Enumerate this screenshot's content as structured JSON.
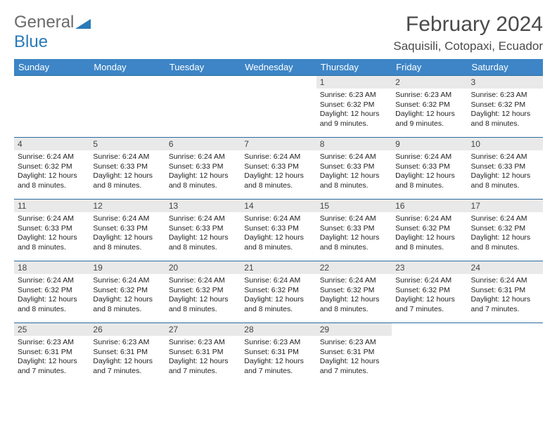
{
  "brand": {
    "line1": "General",
    "line2": "Blue",
    "logo_color": "#2a7ab8",
    "text_color": "#6a6a6a"
  },
  "title": "February 2024",
  "location": "Saquisili, Cotopaxi, Ecuador",
  "colors": {
    "header_bg": "#3d85c6",
    "header_text": "#ffffff",
    "daynum_bg": "#e9e9e9",
    "row_border": "#2a6aa0",
    "body_text": "#222222"
  },
  "weekdays": [
    "Sunday",
    "Monday",
    "Tuesday",
    "Wednesday",
    "Thursday",
    "Friday",
    "Saturday"
  ],
  "weeks": [
    [
      {
        "blank": true
      },
      {
        "blank": true
      },
      {
        "blank": true
      },
      {
        "blank": true
      },
      {
        "day": "1",
        "sunrise": "Sunrise: 6:23 AM",
        "sunset": "Sunset: 6:32 PM",
        "daylight": "Daylight: 12 hours and 9 minutes."
      },
      {
        "day": "2",
        "sunrise": "Sunrise: 6:23 AM",
        "sunset": "Sunset: 6:32 PM",
        "daylight": "Daylight: 12 hours and 9 minutes."
      },
      {
        "day": "3",
        "sunrise": "Sunrise: 6:23 AM",
        "sunset": "Sunset: 6:32 PM",
        "daylight": "Daylight: 12 hours and 8 minutes."
      }
    ],
    [
      {
        "day": "4",
        "sunrise": "Sunrise: 6:24 AM",
        "sunset": "Sunset: 6:32 PM",
        "daylight": "Daylight: 12 hours and 8 minutes."
      },
      {
        "day": "5",
        "sunrise": "Sunrise: 6:24 AM",
        "sunset": "Sunset: 6:33 PM",
        "daylight": "Daylight: 12 hours and 8 minutes."
      },
      {
        "day": "6",
        "sunrise": "Sunrise: 6:24 AM",
        "sunset": "Sunset: 6:33 PM",
        "daylight": "Daylight: 12 hours and 8 minutes."
      },
      {
        "day": "7",
        "sunrise": "Sunrise: 6:24 AM",
        "sunset": "Sunset: 6:33 PM",
        "daylight": "Daylight: 12 hours and 8 minutes."
      },
      {
        "day": "8",
        "sunrise": "Sunrise: 6:24 AM",
        "sunset": "Sunset: 6:33 PM",
        "daylight": "Daylight: 12 hours and 8 minutes."
      },
      {
        "day": "9",
        "sunrise": "Sunrise: 6:24 AM",
        "sunset": "Sunset: 6:33 PM",
        "daylight": "Daylight: 12 hours and 8 minutes."
      },
      {
        "day": "10",
        "sunrise": "Sunrise: 6:24 AM",
        "sunset": "Sunset: 6:33 PM",
        "daylight": "Daylight: 12 hours and 8 minutes."
      }
    ],
    [
      {
        "day": "11",
        "sunrise": "Sunrise: 6:24 AM",
        "sunset": "Sunset: 6:33 PM",
        "daylight": "Daylight: 12 hours and 8 minutes."
      },
      {
        "day": "12",
        "sunrise": "Sunrise: 6:24 AM",
        "sunset": "Sunset: 6:33 PM",
        "daylight": "Daylight: 12 hours and 8 minutes."
      },
      {
        "day": "13",
        "sunrise": "Sunrise: 6:24 AM",
        "sunset": "Sunset: 6:33 PM",
        "daylight": "Daylight: 12 hours and 8 minutes."
      },
      {
        "day": "14",
        "sunrise": "Sunrise: 6:24 AM",
        "sunset": "Sunset: 6:33 PM",
        "daylight": "Daylight: 12 hours and 8 minutes."
      },
      {
        "day": "15",
        "sunrise": "Sunrise: 6:24 AM",
        "sunset": "Sunset: 6:33 PM",
        "daylight": "Daylight: 12 hours and 8 minutes."
      },
      {
        "day": "16",
        "sunrise": "Sunrise: 6:24 AM",
        "sunset": "Sunset: 6:32 PM",
        "daylight": "Daylight: 12 hours and 8 minutes."
      },
      {
        "day": "17",
        "sunrise": "Sunrise: 6:24 AM",
        "sunset": "Sunset: 6:32 PM",
        "daylight": "Daylight: 12 hours and 8 minutes."
      }
    ],
    [
      {
        "day": "18",
        "sunrise": "Sunrise: 6:24 AM",
        "sunset": "Sunset: 6:32 PM",
        "daylight": "Daylight: 12 hours and 8 minutes."
      },
      {
        "day": "19",
        "sunrise": "Sunrise: 6:24 AM",
        "sunset": "Sunset: 6:32 PM",
        "daylight": "Daylight: 12 hours and 8 minutes."
      },
      {
        "day": "20",
        "sunrise": "Sunrise: 6:24 AM",
        "sunset": "Sunset: 6:32 PM",
        "daylight": "Daylight: 12 hours and 8 minutes."
      },
      {
        "day": "21",
        "sunrise": "Sunrise: 6:24 AM",
        "sunset": "Sunset: 6:32 PM",
        "daylight": "Daylight: 12 hours and 8 minutes."
      },
      {
        "day": "22",
        "sunrise": "Sunrise: 6:24 AM",
        "sunset": "Sunset: 6:32 PM",
        "daylight": "Daylight: 12 hours and 8 minutes."
      },
      {
        "day": "23",
        "sunrise": "Sunrise: 6:24 AM",
        "sunset": "Sunset: 6:32 PM",
        "daylight": "Daylight: 12 hours and 7 minutes."
      },
      {
        "day": "24",
        "sunrise": "Sunrise: 6:24 AM",
        "sunset": "Sunset: 6:31 PM",
        "daylight": "Daylight: 12 hours and 7 minutes."
      }
    ],
    [
      {
        "day": "25",
        "sunrise": "Sunrise: 6:23 AM",
        "sunset": "Sunset: 6:31 PM",
        "daylight": "Daylight: 12 hours and 7 minutes."
      },
      {
        "day": "26",
        "sunrise": "Sunrise: 6:23 AM",
        "sunset": "Sunset: 6:31 PM",
        "daylight": "Daylight: 12 hours and 7 minutes."
      },
      {
        "day": "27",
        "sunrise": "Sunrise: 6:23 AM",
        "sunset": "Sunset: 6:31 PM",
        "daylight": "Daylight: 12 hours and 7 minutes."
      },
      {
        "day": "28",
        "sunrise": "Sunrise: 6:23 AM",
        "sunset": "Sunset: 6:31 PM",
        "daylight": "Daylight: 12 hours and 7 minutes."
      },
      {
        "day": "29",
        "sunrise": "Sunrise: 6:23 AM",
        "sunset": "Sunset: 6:31 PM",
        "daylight": "Daylight: 12 hours and 7 minutes."
      },
      {
        "blank": true
      },
      {
        "blank": true
      }
    ]
  ]
}
